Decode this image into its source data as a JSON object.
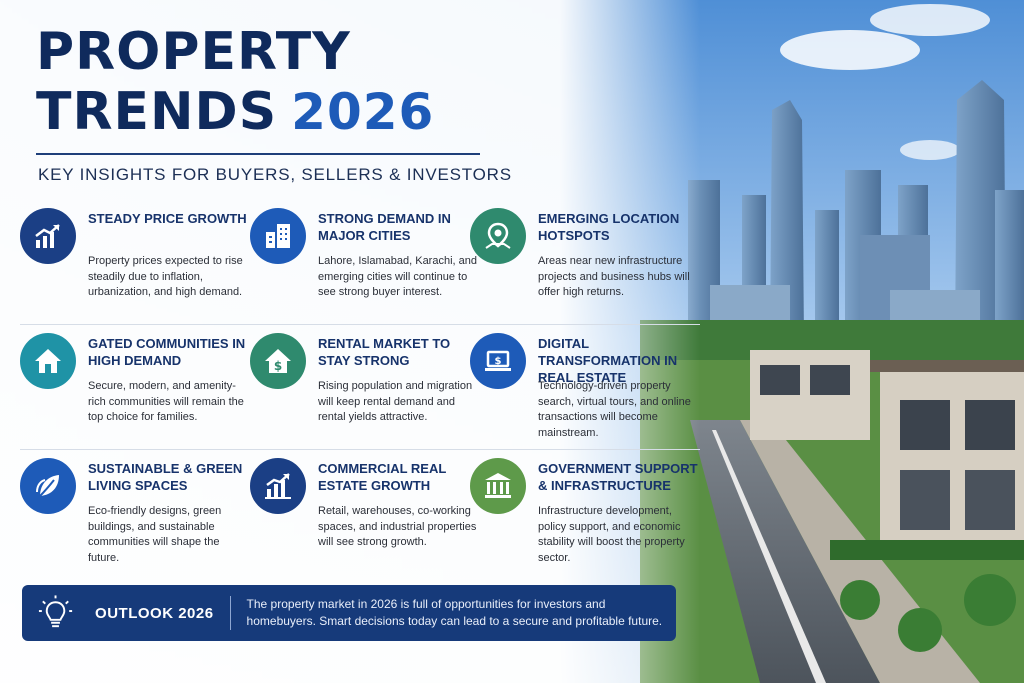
{
  "header": {
    "title_line1": "PROPERTY",
    "title_line2": "TRENDS",
    "title_year": "2026",
    "subtitle": "KEY INSIGHTS FOR BUYERS, SELLERS & INVESTORS"
  },
  "cards": [
    {
      "title": "STEADY PRICE GROWTH",
      "text": "Property prices expected to rise steadily due to inflation, urbanization, and high demand.",
      "icon": "chart-up-icon",
      "color": "#1b3f85"
    },
    {
      "title": "STRONG DEMAND IN MAJOR CITIES",
      "text": "Lahore, Islamabad, Karachi, and emerging cities will continue to see strong buyer interest.",
      "icon": "buildings-icon",
      "color": "#1e5bb8"
    },
    {
      "title": "EMERGING LOCATION HOTSPOTS",
      "text": "Areas near new infrastructure projects and business hubs will offer high returns.",
      "icon": "map-pin-icon",
      "color": "#2f8a6e"
    },
    {
      "title": "GATED COMMUNITIES IN HIGH DEMAND",
      "text": "Secure, modern, and amenity-rich communities will remain the top choice for families.",
      "icon": "house-icon",
      "color": "#1f93a6"
    },
    {
      "title": "RENTAL MARKET TO STAY STRONG",
      "text": "Rising population and migration will keep rental demand and rental yields attractive.",
      "icon": "house-dollar-icon",
      "color": "#2f8a6e"
    },
    {
      "title": "DIGITAL TRANSFORMATION IN REAL ESTATE",
      "text": "Technology-driven property search, virtual tours, and online transactions will become mainstream.",
      "icon": "laptop-dollar-icon",
      "color": "#1e5bb8"
    },
    {
      "title": "SUSTAINABLE & GREEN LIVING SPACES",
      "text": "Eco-friendly designs, green buildings, and sustainable communities will shape the future.",
      "icon": "leaf-icon",
      "color": "#1e5bb8"
    },
    {
      "title": "COMMERCIAL REAL ESTATE GROWTH",
      "text": "Retail, warehouses, co-working spaces, and industrial properties will see strong growth.",
      "icon": "bar-chart-icon",
      "color": "#1b3f85"
    },
    {
      "title": "GOVERNMENT SUPPORT & INFRASTRUCTURE",
      "text": "Infrastructure development, policy support, and economic stability will boost the property sector.",
      "icon": "government-building-icon",
      "color": "#5e9a4a"
    }
  ],
  "outlook": {
    "label": "OUTLOOK 2026",
    "text": "The property market in 2026 is full of opportunities for investors and homebuyers. Smart decisions today can lead to a secure and profitable future.",
    "icon": "lightbulb-icon"
  },
  "colors": {
    "navy": "#0f2a5c",
    "accent_blue": "#1e5bb8",
    "banner": "#163a7a"
  }
}
